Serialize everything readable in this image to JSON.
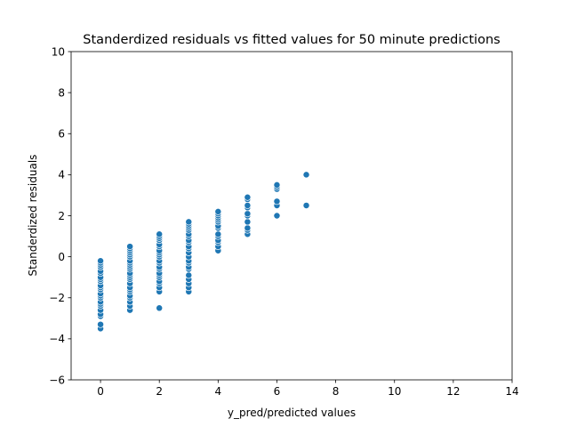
{
  "chart_data": {
    "type": "scatter",
    "title": "Standerdized residuals vs fitted values for 50 minute predictions",
    "xlabel": "y_pred/predicted values",
    "ylabel": "Standerdized residuals",
    "xlim": [
      -1,
      14
    ],
    "ylim": [
      -6,
      10
    ],
    "xticks": [
      "0",
      "2",
      "4",
      "6",
      "8",
      "10",
      "12",
      "14"
    ],
    "yticks": [
      "−6",
      "−4",
      "−2",
      "0",
      "2",
      "4",
      "6",
      "8",
      "10"
    ],
    "grid": false,
    "point_color": "#1f77b4",
    "series": [
      {
        "points": [
          [
            0,
            -3.5
          ],
          [
            0,
            -3.3
          ],
          [
            0,
            -2.9
          ],
          [
            0,
            -2.8
          ],
          [
            0,
            -2.6
          ],
          [
            0,
            -2.4
          ],
          [
            0,
            -2.3
          ],
          [
            0,
            -2.2
          ],
          [
            0,
            -2.0
          ],
          [
            0,
            -1.9
          ],
          [
            0,
            -1.8
          ],
          [
            0,
            -1.6
          ],
          [
            0,
            -1.5
          ],
          [
            0,
            -1.4
          ],
          [
            0,
            -1.2
          ],
          [
            0,
            -1.1
          ],
          [
            0,
            -1.0
          ],
          [
            0,
            -0.8
          ],
          [
            0,
            -0.7
          ],
          [
            0,
            -0.5
          ],
          [
            0,
            -0.4
          ],
          [
            0,
            -0.3
          ],
          [
            0,
            -0.2
          ],
          [
            1,
            -2.6
          ],
          [
            1,
            -2.4
          ],
          [
            1,
            -2.2
          ],
          [
            1,
            -2.0
          ],
          [
            1,
            -1.9
          ],
          [
            1,
            -1.7
          ],
          [
            1,
            -1.6
          ],
          [
            1,
            -1.5
          ],
          [
            1,
            -1.3
          ],
          [
            1,
            -1.1
          ],
          [
            1,
            -1.0
          ],
          [
            1,
            -0.9
          ],
          [
            1,
            -0.8
          ],
          [
            1,
            -0.6
          ],
          [
            1,
            -0.5
          ],
          [
            1,
            -0.4
          ],
          [
            1,
            -0.3
          ],
          [
            1,
            -0.2
          ],
          [
            1,
            0.0
          ],
          [
            1,
            0.1
          ],
          [
            1,
            0.2
          ],
          [
            1,
            0.3
          ],
          [
            1,
            0.4
          ],
          [
            1,
            0.5
          ],
          [
            2,
            -2.5
          ],
          [
            2,
            -1.7
          ],
          [
            2,
            -1.5
          ],
          [
            2,
            -1.3
          ],
          [
            2,
            -1.2
          ],
          [
            2,
            -1.0
          ],
          [
            2,
            -0.9
          ],
          [
            2,
            -0.8
          ],
          [
            2,
            -0.6
          ],
          [
            2,
            -0.5
          ],
          [
            2,
            -0.3
          ],
          [
            2,
            -0.2
          ],
          [
            2,
            0.0
          ],
          [
            2,
            0.1
          ],
          [
            2,
            0.2
          ],
          [
            2,
            0.3
          ],
          [
            2,
            0.5
          ],
          [
            2,
            0.6
          ],
          [
            2,
            0.8
          ],
          [
            2,
            0.9
          ],
          [
            2,
            1.0
          ],
          [
            2,
            1.1
          ],
          [
            3,
            -1.7
          ],
          [
            3,
            -1.5
          ],
          [
            3,
            -1.3
          ],
          [
            3,
            -1.1
          ],
          [
            3,
            -0.9
          ],
          [
            3,
            -0.6
          ],
          [
            3,
            -0.5
          ],
          [
            3,
            -0.3
          ],
          [
            3,
            -0.2
          ],
          [
            3,
            0.0
          ],
          [
            3,
            0.2
          ],
          [
            3,
            0.4
          ],
          [
            3,
            0.5
          ],
          [
            3,
            0.7
          ],
          [
            3,
            0.8
          ],
          [
            3,
            1.0
          ],
          [
            3,
            1.1
          ],
          [
            3,
            1.3
          ],
          [
            3,
            1.4
          ],
          [
            3,
            1.5
          ],
          [
            3,
            1.6
          ],
          [
            3,
            1.7
          ],
          [
            4,
            0.3
          ],
          [
            4,
            0.5
          ],
          [
            4,
            0.7
          ],
          [
            4,
            0.8
          ],
          [
            4,
            1.0
          ],
          [
            4,
            1.1
          ],
          [
            4,
            1.4
          ],
          [
            4,
            1.5
          ],
          [
            4,
            1.7
          ],
          [
            4,
            1.8
          ],
          [
            4,
            1.9
          ],
          [
            4,
            2.0
          ],
          [
            4,
            2.1
          ],
          [
            4,
            2.2
          ],
          [
            5,
            1.1
          ],
          [
            5,
            1.3
          ],
          [
            5,
            1.4
          ],
          [
            5,
            1.7
          ],
          [
            5,
            2.0
          ],
          [
            5,
            2.1
          ],
          [
            5,
            2.4
          ],
          [
            5,
            2.5
          ],
          [
            5,
            2.8
          ],
          [
            5,
            2.9
          ],
          [
            6,
            2.0
          ],
          [
            6,
            2.5
          ],
          [
            6,
            2.7
          ],
          [
            6,
            3.3
          ],
          [
            6,
            3.4
          ],
          [
            6,
            3.5
          ],
          [
            7,
            2.5
          ],
          [
            7,
            4.0
          ]
        ]
      }
    ]
  }
}
